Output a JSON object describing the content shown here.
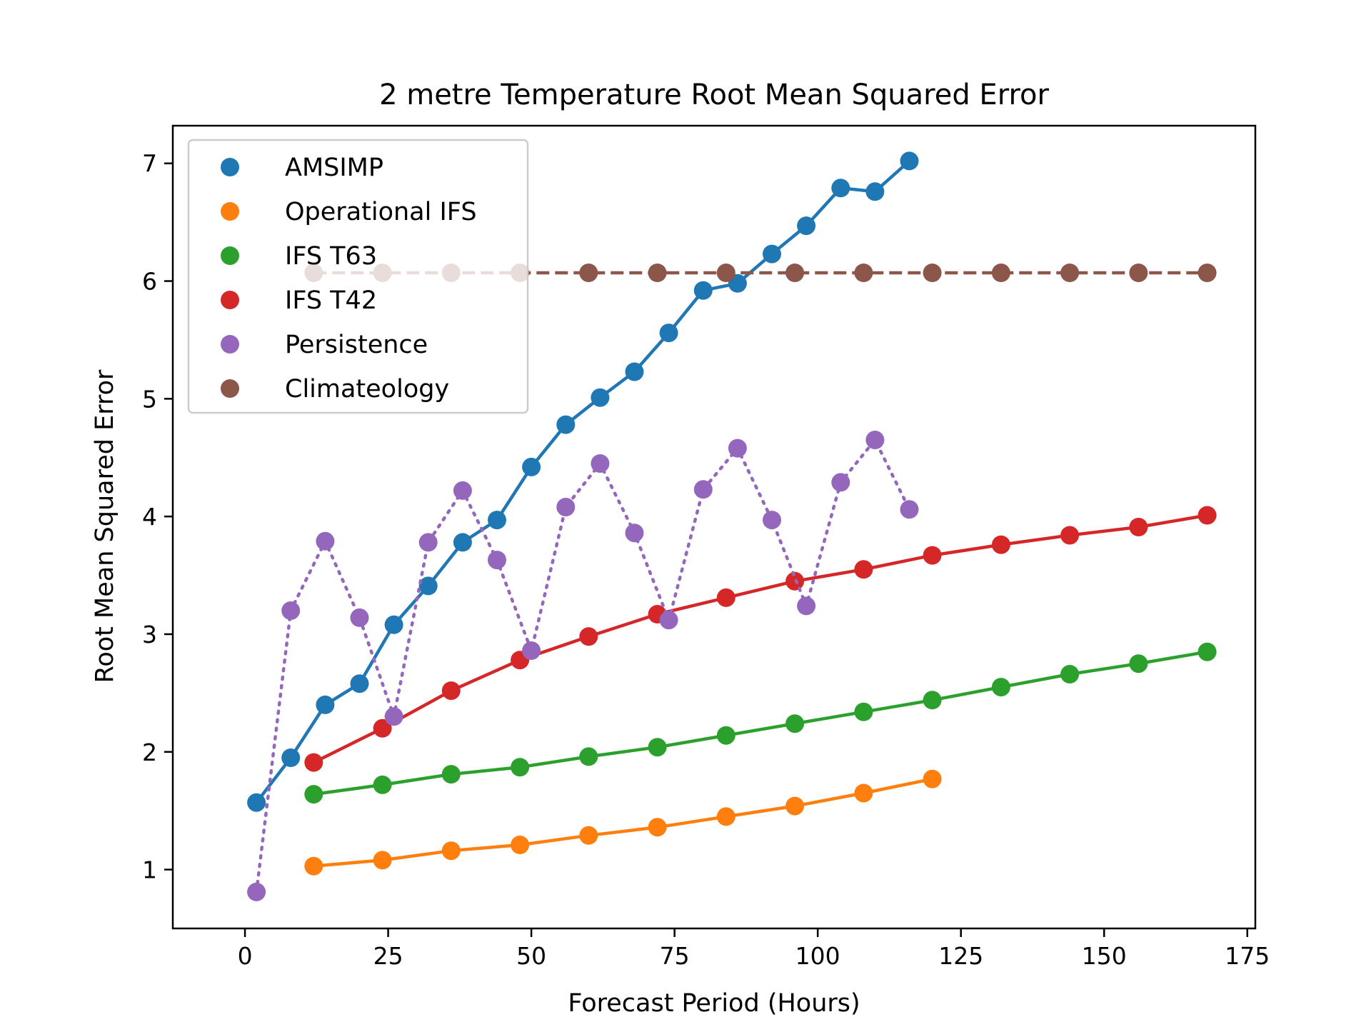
{
  "chart_data": {
    "type": "line",
    "title": "2 metre Temperature Root Mean Squared Error",
    "xlabel": "Forecast Period (Hours)",
    "ylabel": "Root Mean Squared Error",
    "xlim": [
      -12.6,
      176.4
    ],
    "ylim": [
      0.5,
      7.32
    ],
    "xticks": [
      0,
      25,
      50,
      75,
      100,
      125,
      150,
      175
    ],
    "yticks": [
      1,
      2,
      3,
      4,
      5,
      6,
      7
    ],
    "grid": false,
    "legend_position": "top-left",
    "series": [
      {
        "name": "AMSIMP",
        "color": "#1f77b4",
        "line_style": "solid",
        "x": [
          2,
          8,
          14,
          20,
          26,
          32,
          38,
          44,
          50,
          56,
          62,
          68,
          74,
          80,
          86,
          92,
          98,
          104,
          110,
          116
        ],
        "y": [
          1.57,
          1.95,
          2.4,
          2.58,
          3.08,
          3.41,
          3.78,
          3.97,
          4.42,
          4.78,
          5.01,
          5.23,
          5.56,
          5.92,
          5.98,
          6.23,
          6.47,
          6.79,
          6.76,
          7.02
        ]
      },
      {
        "name": "Operational IFS",
        "color": "#ff7f0e",
        "line_style": "solid",
        "x": [
          12,
          24,
          36,
          48,
          60,
          72,
          84,
          96,
          108,
          120
        ],
        "y": [
          1.03,
          1.08,
          1.16,
          1.21,
          1.29,
          1.36,
          1.45,
          1.54,
          1.65,
          1.77
        ]
      },
      {
        "name": "IFS T63",
        "color": "#2ca02c",
        "line_style": "solid",
        "x": [
          12,
          24,
          36,
          48,
          60,
          72,
          84,
          96,
          108,
          120,
          132,
          144,
          156,
          168
        ],
        "y": [
          1.64,
          1.72,
          1.81,
          1.87,
          1.96,
          2.04,
          2.14,
          2.24,
          2.34,
          2.44,
          2.55,
          2.66,
          2.75,
          2.85
        ]
      },
      {
        "name": "IFS T42",
        "color": "#d62728",
        "line_style": "solid",
        "x": [
          12,
          24,
          36,
          48,
          60,
          72,
          84,
          96,
          108,
          120,
          132,
          144,
          156,
          168
        ],
        "y": [
          1.91,
          2.2,
          2.52,
          2.78,
          2.98,
          3.17,
          3.31,
          3.45,
          3.55,
          3.67,
          3.76,
          3.84,
          3.91,
          4.01
        ]
      },
      {
        "name": "Persistence",
        "color": "#9467bd",
        "line_style": "dotted",
        "x": [
          2,
          8,
          14,
          20,
          26,
          32,
          38,
          44,
          50,
          56,
          62,
          68,
          74,
          80,
          86,
          92,
          98,
          104,
          110,
          116
        ],
        "y": [
          0.81,
          3.2,
          3.79,
          3.14,
          2.3,
          3.78,
          4.22,
          3.63,
          2.86,
          4.08,
          4.45,
          3.86,
          3.12,
          4.23,
          4.58,
          3.97,
          3.24,
          4.29,
          4.65,
          4.06
        ]
      },
      {
        "name": "Climateology",
        "color": "#8c564b",
        "line_style": "dashed",
        "x": [
          12,
          24,
          36,
          48,
          60,
          72,
          84,
          96,
          108,
          120,
          132,
          144,
          156,
          168
        ],
        "y": [
          6.07,
          6.07,
          6.07,
          6.07,
          6.07,
          6.07,
          6.07,
          6.07,
          6.07,
          6.07,
          6.07,
          6.07,
          6.07,
          6.07
        ]
      }
    ]
  }
}
